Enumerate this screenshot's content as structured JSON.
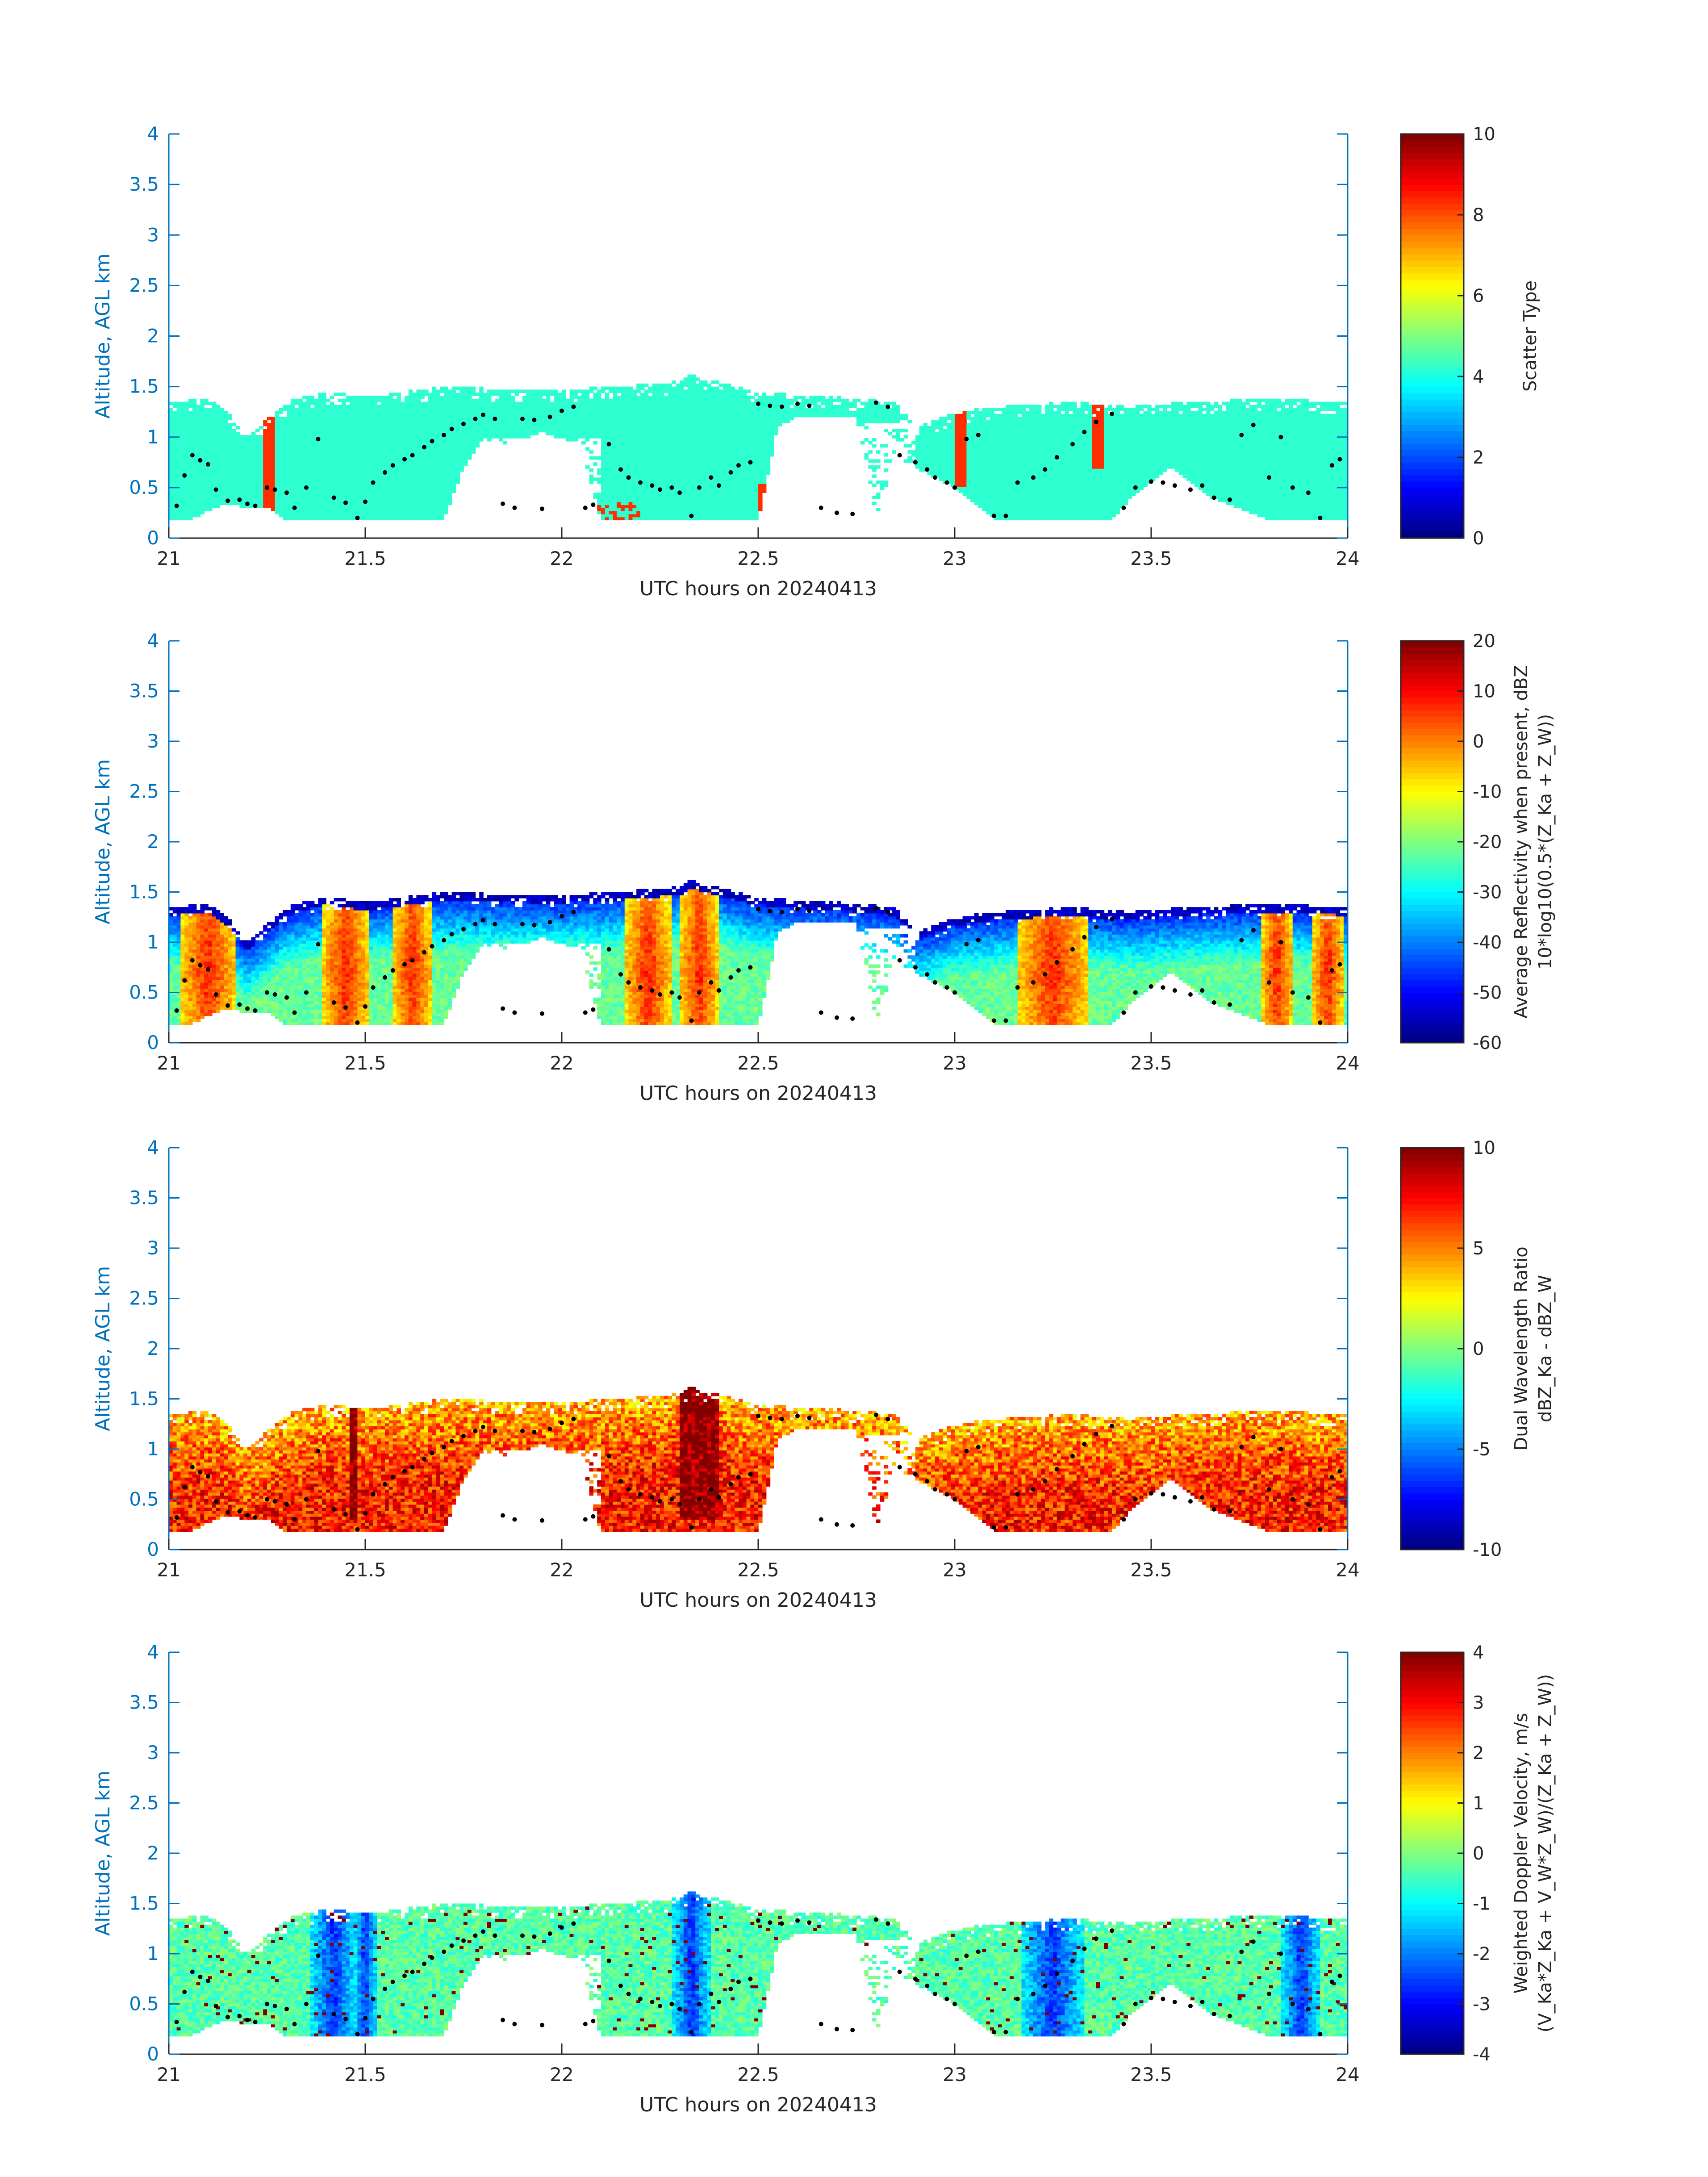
{
  "chart_data": [
    {
      "type": "heatmap",
      "x_label": "UTC hours on 20240413",
      "y_label": "Altitude, AGL km",
      "xlim": [
        21,
        24
      ],
      "ylim": [
        0,
        4
      ],
      "x_ticks": [
        "21",
        "21.5",
        "22",
        "22.5",
        "23",
        "23.5",
        "24"
      ],
      "y_ticks": [
        "0",
        "0.5",
        "1",
        "1.5",
        "2",
        "2.5",
        "3",
        "3.5",
        "4"
      ],
      "colorbar": {
        "label_lines": [
          "Scatter Type"
        ],
        "range": [
          0,
          10
        ],
        "ticks": [
          "0",
          "2",
          "4",
          "6",
          "8",
          "10"
        ],
        "colormap": "jet"
      },
      "field": "scatter_type",
      "dominant_value": 4.2,
      "accent_value": 8.3
    },
    {
      "type": "heatmap",
      "x_label": "UTC hours on 20240413",
      "y_label": "Altitude, AGL km",
      "xlim": [
        21,
        24
      ],
      "ylim": [
        0,
        4
      ],
      "x_ticks": [
        "21",
        "21.5",
        "22",
        "22.5",
        "23",
        "23.5",
        "24"
      ],
      "y_ticks": [
        "0",
        "0.5",
        "1",
        "1.5",
        "2",
        "2.5",
        "3",
        "3.5",
        "4"
      ],
      "colorbar": {
        "label_lines": [
          "Average Reflectivity when present, dBZ",
          "10*log10(0.5*(Z_Ka + Z_W))"
        ],
        "range": [
          -60,
          20
        ],
        "ticks": [
          "-60",
          "-50",
          "-40",
          "-30",
          "-20",
          "-10",
          "0",
          "10",
          "20"
        ],
        "colormap": "jet"
      },
      "field": "reflectivity"
    },
    {
      "type": "heatmap",
      "x_label": "UTC hours on 20240413",
      "y_label": "Altitude, AGL km",
      "xlim": [
        21,
        24
      ],
      "ylim": [
        0,
        4
      ],
      "x_ticks": [
        "21",
        "21.5",
        "22",
        "22.5",
        "23",
        "23.5",
        "24"
      ],
      "y_ticks": [
        "0",
        "0.5",
        "1",
        "1.5",
        "2",
        "2.5",
        "3",
        "3.5",
        "4"
      ],
      "colorbar": {
        "label_lines": [
          "Dual Wavelength Ratio",
          "dBZ_Ka - dBZ_W"
        ],
        "range": [
          -10,
          10
        ],
        "ticks": [
          "-10",
          "-5",
          "0",
          "5",
          "10"
        ],
        "colormap": "jet"
      },
      "field": "dwr"
    },
    {
      "type": "heatmap",
      "x_label": "UTC hours on 20240413",
      "y_label": "Altitude, AGL km",
      "xlim": [
        21,
        24
      ],
      "ylim": [
        0,
        4
      ],
      "x_ticks": [
        "21",
        "21.5",
        "22",
        "22.5",
        "23",
        "23.5",
        "24"
      ],
      "y_ticks": [
        "0",
        "0.5",
        "1",
        "1.5",
        "2",
        "2.5",
        "3",
        "3.5",
        "4"
      ],
      "colorbar": {
        "label_lines": [
          "Weighted Doppler Velocity, m/s",
          "(V_Ka*Z_Ka + V_W*Z_W)/(Z_Ka + Z_W))"
        ],
        "range": [
          -4,
          4
        ],
        "ticks": [
          "-4",
          "-3",
          "-2",
          "-1",
          "0",
          "1",
          "2",
          "3",
          "4"
        ],
        "colormap": "jet"
      },
      "field": "doppler"
    }
  ],
  "shared": {
    "cloud_top_km": [
      [
        21.0,
        1.35
      ],
      [
        21.1,
        1.38
      ],
      [
        21.15,
        1.25
      ],
      [
        21.2,
        1.0
      ],
      [
        21.3,
        1.35
      ],
      [
        21.4,
        1.45
      ],
      [
        21.5,
        1.4
      ],
      [
        21.6,
        1.45
      ],
      [
        21.7,
        1.5
      ],
      [
        21.85,
        1.48
      ],
      [
        22.0,
        1.47
      ],
      [
        22.15,
        1.5
      ],
      [
        22.3,
        1.55
      ],
      [
        22.33,
        1.62
      ],
      [
        22.4,
        1.55
      ],
      [
        22.5,
        1.45
      ],
      [
        22.6,
        1.42
      ],
      [
        22.7,
        1.4
      ],
      [
        22.85,
        1.35
      ],
      [
        22.9,
        1.1
      ],
      [
        23.0,
        1.25
      ],
      [
        23.1,
        1.3
      ],
      [
        23.3,
        1.35
      ],
      [
        23.45,
        1.3
      ],
      [
        23.6,
        1.35
      ],
      [
        23.8,
        1.38
      ],
      [
        24.0,
        1.35
      ]
    ],
    "base_km": 0.18,
    "cloud_base_km": [
      [
        21.0,
        0.18
      ],
      [
        21.05,
        0.18
      ],
      [
        21.15,
        0.35
      ],
      [
        21.2,
        0.3
      ],
      [
        21.25,
        0.3
      ],
      [
        21.3,
        0.18
      ],
      [
        21.5,
        0.18
      ],
      [
        21.7,
        0.18
      ],
      [
        21.75,
        0.7
      ],
      [
        21.8,
        1.0
      ],
      [
        21.85,
        0.9
      ],
      [
        21.95,
        1.05
      ],
      [
        22.05,
        0.9
      ],
      [
        22.1,
        0.18
      ],
      [
        22.5,
        0.18
      ],
      [
        22.55,
        1.1
      ],
      [
        22.6,
        1.2
      ],
      [
        22.75,
        1.2
      ],
      [
        22.8,
        0.2
      ],
      [
        22.85,
        0.8
      ],
      [
        22.9,
        0.7
      ],
      [
        23.0,
        0.5
      ],
      [
        23.1,
        0.18
      ],
      [
        23.4,
        0.18
      ],
      [
        23.45,
        0.4
      ],
      [
        23.55,
        0.7
      ],
      [
        23.65,
        0.4
      ],
      [
        23.8,
        0.18
      ],
      [
        24.0,
        0.18
      ]
    ],
    "gaps": [
      [
        21.8,
        22.1,
        0.45,
        1.0
      ],
      [
        22.55,
        22.9,
        0.3,
        1.15
      ]
    ],
    "dots_km": [
      [
        21.02,
        0.32
      ],
      [
        21.04,
        0.62
      ],
      [
        21.06,
        0.82
      ],
      [
        21.08,
        0.77
      ],
      [
        21.1,
        0.73
      ],
      [
        21.12,
        0.48
      ],
      [
        21.15,
        0.37
      ],
      [
        21.18,
        0.38
      ],
      [
        21.2,
        0.34
      ],
      [
        21.22,
        0.32
      ],
      [
        21.25,
        0.5
      ],
      [
        21.27,
        0.48
      ],
      [
        21.3,
        0.45
      ],
      [
        21.32,
        0.3
      ],
      [
        21.35,
        0.5
      ],
      [
        21.38,
        0.98
      ],
      [
        21.42,
        0.4
      ],
      [
        21.45,
        0.35
      ],
      [
        21.48,
        0.2
      ],
      [
        21.5,
        0.36
      ],
      [
        21.52,
        0.55
      ],
      [
        21.55,
        0.65
      ],
      [
        21.57,
        0.72
      ],
      [
        21.6,
        0.78
      ],
      [
        21.62,
        0.82
      ],
      [
        21.65,
        0.9
      ],
      [
        21.67,
        0.96
      ],
      [
        21.7,
        1.02
      ],
      [
        21.72,
        1.08
      ],
      [
        21.75,
        1.13
      ],
      [
        21.78,
        1.18
      ],
      [
        21.8,
        1.22
      ],
      [
        21.83,
        1.18
      ],
      [
        21.85,
        0.34
      ],
      [
        21.88,
        0.3
      ],
      [
        21.9,
        1.18
      ],
      [
        21.93,
        1.17
      ],
      [
        21.95,
        0.29
      ],
      [
        21.97,
        1.2
      ],
      [
        22.0,
        1.26
      ],
      [
        22.03,
        1.3
      ],
      [
        22.06,
        0.3
      ],
      [
        22.08,
        0.33
      ],
      [
        22.12,
        0.93
      ],
      [
        22.15,
        0.68
      ],
      [
        22.17,
        0.6
      ],
      [
        22.2,
        0.55
      ],
      [
        22.23,
        0.52
      ],
      [
        22.25,
        0.48
      ],
      [
        22.28,
        0.5
      ],
      [
        22.3,
        0.45
      ],
      [
        22.33,
        0.22
      ],
      [
        22.35,
        0.5
      ],
      [
        22.38,
        0.6
      ],
      [
        22.4,
        0.52
      ],
      [
        22.43,
        0.65
      ],
      [
        22.45,
        0.72
      ],
      [
        22.48,
        0.75
      ],
      [
        22.5,
        1.33
      ],
      [
        22.53,
        1.31
      ],
      [
        22.56,
        1.3
      ],
      [
        22.6,
        1.33
      ],
      [
        22.63,
        1.31
      ],
      [
        22.66,
        0.3
      ],
      [
        22.7,
        0.25
      ],
      [
        22.74,
        0.24
      ],
      [
        22.8,
        1.34
      ],
      [
        22.83,
        1.3
      ],
      [
        22.86,
        0.82
      ],
      [
        22.9,
        0.75
      ],
      [
        22.93,
        0.68
      ],
      [
        22.95,
        0.6
      ],
      [
        22.98,
        0.55
      ],
      [
        23.0,
        0.5
      ],
      [
        23.03,
        0.98
      ],
      [
        23.06,
        1.02
      ],
      [
        23.1,
        0.22
      ],
      [
        23.13,
        0.22
      ],
      [
        23.16,
        0.55
      ],
      [
        23.2,
        0.6
      ],
      [
        23.23,
        0.68
      ],
      [
        23.26,
        0.8
      ],
      [
        23.3,
        0.93
      ],
      [
        23.33,
        1.05
      ],
      [
        23.36,
        1.15
      ],
      [
        23.4,
        1.23
      ],
      [
        23.43,
        0.3
      ],
      [
        23.46,
        0.5
      ],
      [
        23.5,
        0.56
      ],
      [
        23.53,
        0.55
      ],
      [
        23.56,
        0.52
      ],
      [
        23.6,
        0.48
      ],
      [
        23.63,
        0.52
      ],
      [
        23.66,
        0.4
      ],
      [
        23.7,
        0.38
      ],
      [
        23.73,
        1.02
      ],
      [
        23.76,
        1.12
      ],
      [
        23.8,
        0.6
      ],
      [
        23.83,
        1.0
      ],
      [
        23.86,
        0.5
      ],
      [
        23.9,
        0.45
      ],
      [
        23.93,
        0.2
      ],
      [
        23.96,
        0.72
      ],
      [
        23.98,
        0.78
      ]
    ]
  }
}
